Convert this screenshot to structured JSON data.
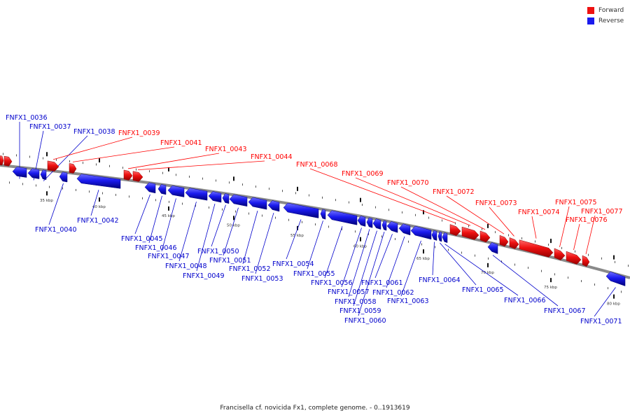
{
  "legend": [
    {
      "label": "Forward",
      "color": "#ee1111"
    },
    {
      "label": "Reverse",
      "color": "#1a1aee"
    }
  ],
  "axis": {
    "ticks": [
      "35 kbp",
      "40 kbp",
      "45 kbp",
      "50 kbp",
      "55 kbp",
      "60 kbp",
      "65 kbp",
      "70 kbp",
      "75 kbp",
      "80 kbp"
    ]
  },
  "genes": [
    {
      "label": "FNFX1_0036",
      "strand": "reverse"
    },
    {
      "label": "FNFX1_0037",
      "strand": "reverse"
    },
    {
      "label": "FNFX1_0038",
      "strand": "reverse"
    },
    {
      "label": "FNFX1_0039",
      "strand": "forward"
    },
    {
      "label": "FNFX1_0040",
      "strand": "reverse"
    },
    {
      "label": "FNFX1_0041",
      "strand": "forward"
    },
    {
      "label": "FNFX1_0042",
      "strand": "reverse"
    },
    {
      "label": "FNFX1_0043",
      "strand": "forward"
    },
    {
      "label": "FNFX1_0044",
      "strand": "forward"
    },
    {
      "label": "FNFX1_0045",
      "strand": "reverse"
    },
    {
      "label": "FNFX1_0046",
      "strand": "reverse"
    },
    {
      "label": "FNFX1_0047",
      "strand": "reverse"
    },
    {
      "label": "FNFX1_0048",
      "strand": "reverse"
    },
    {
      "label": "FNFX1_0049",
      "strand": "reverse"
    },
    {
      "label": "FNFX1_0050",
      "strand": "reverse"
    },
    {
      "label": "FNFX1_0051",
      "strand": "reverse"
    },
    {
      "label": "FNFX1_0052",
      "strand": "reverse"
    },
    {
      "label": "FNFX1_0053",
      "strand": "reverse"
    },
    {
      "label": "FNFX1_0054",
      "strand": "reverse"
    },
    {
      "label": "FNFX1_0055",
      "strand": "reverse"
    },
    {
      "label": "FNFX1_0056",
      "strand": "reverse"
    },
    {
      "label": "FNFX1_0057",
      "strand": "reverse"
    },
    {
      "label": "FNFX1_0058",
      "strand": "reverse"
    },
    {
      "label": "FNFX1_0059",
      "strand": "reverse"
    },
    {
      "label": "FNFX1_0060",
      "strand": "reverse"
    },
    {
      "label": "FNFX1_0061",
      "strand": "reverse"
    },
    {
      "label": "FNFX1_0062",
      "strand": "reverse"
    },
    {
      "label": "FNFX1_0063",
      "strand": "reverse"
    },
    {
      "label": "FNFX1_0064",
      "strand": "reverse"
    },
    {
      "label": "FNFX1_0065",
      "strand": "reverse"
    },
    {
      "label": "FNFX1_0066",
      "strand": "reverse"
    },
    {
      "label": "FNFX1_0067",
      "strand": "reverse"
    },
    {
      "label": "FNFX1_0068",
      "strand": "forward"
    },
    {
      "label": "FNFX1_0069",
      "strand": "forward"
    },
    {
      "label": "FNFX1_0070",
      "strand": "forward"
    },
    {
      "label": "FNFX1_0071",
      "strand": "reverse"
    },
    {
      "label": "FNFX1_0072",
      "strand": "forward"
    },
    {
      "label": "FNFX1_0073",
      "strand": "forward"
    },
    {
      "label": "FNFX1_0074",
      "strand": "forward"
    },
    {
      "label": "FNFX1_0075",
      "strand": "forward"
    },
    {
      "label": "FNFX1_0076",
      "strand": "forward"
    },
    {
      "label": "FNFX1_0077",
      "strand": "forward"
    }
  ],
  "footer": {
    "caption": "Francisella cf. novicida Fx1, complete genome. - 0..1913619"
  }
}
